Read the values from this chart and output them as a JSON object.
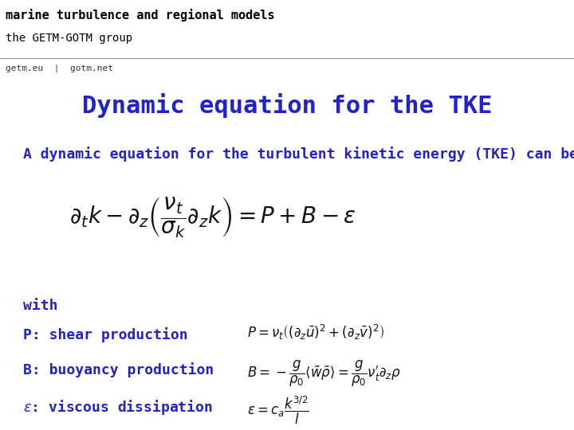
{
  "bg_header_color": "#b8c9a3",
  "bg_main_color": "#ffffff",
  "header_line1": "marine turbulence and regional models",
  "header_line2": "the GETM-GOTM group",
  "subheader": "getm.eu  |  gotm.net",
  "title": "Dynamic equation for the TKE",
  "title_color": "#2222cc",
  "title_fontsize": 22,
  "intro_text": "A dynamic equation for the turbulent kinetic energy (TKE) can be derived:",
  "intro_color": "#2222cc",
  "intro_fontsize": 13,
  "with_label": "with",
  "label_P": "P: shear production",
  "label_B": "B: buoyancy production",
  "label_eps": "\\varepsilon: viscous dissipation",
  "label_color": "#2222cc",
  "label_fontsize": 13,
  "eq_color": "#111111",
  "header_text_color": "#000000",
  "header_fontsize": 11
}
